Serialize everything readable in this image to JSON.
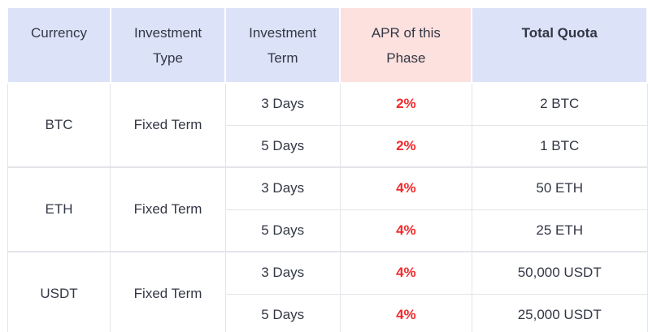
{
  "theme": {
    "header_blue": "#dce3f8",
    "header_pink": "#fce1de",
    "apr_red": "#f02a2d",
    "text_color": "#333745",
    "border_color": "#e4e5e9"
  },
  "table": {
    "columns": [
      {
        "key": "currency",
        "label": "Currency",
        "highlight": false,
        "bold": false
      },
      {
        "key": "investment-type",
        "label": "Investment Type",
        "highlight": false,
        "bold": false
      },
      {
        "key": "investment-term",
        "label": "Investment Term",
        "highlight": false,
        "bold": false
      },
      {
        "key": "apr",
        "label": "APR of this Phase",
        "highlight": true,
        "bold": false
      },
      {
        "key": "total-quota",
        "label": "Total Quota",
        "highlight": false,
        "bold": true
      }
    ],
    "groups": [
      {
        "currency": "BTC",
        "investment_type": "Fixed Term",
        "rows": [
          {
            "term": "3 Days",
            "apr": "2%",
            "quota": "2 BTC"
          },
          {
            "term": "5 Days",
            "apr": "2%",
            "quota": "1 BTC"
          }
        ]
      },
      {
        "currency": "ETH",
        "investment_type": "Fixed Term",
        "rows": [
          {
            "term": "3 Days",
            "apr": "4%",
            "quota": "50 ETH"
          },
          {
            "term": "5 Days",
            "apr": "4%",
            "quota": "25 ETH"
          }
        ]
      },
      {
        "currency": "USDT",
        "investment_type": "Fixed Term",
        "rows": [
          {
            "term": "3 Days",
            "apr": "4%",
            "quota": "50,000 USDT"
          },
          {
            "term": "5 Days",
            "apr": "4%",
            "quota": "25,000 USDT"
          }
        ]
      }
    ]
  }
}
